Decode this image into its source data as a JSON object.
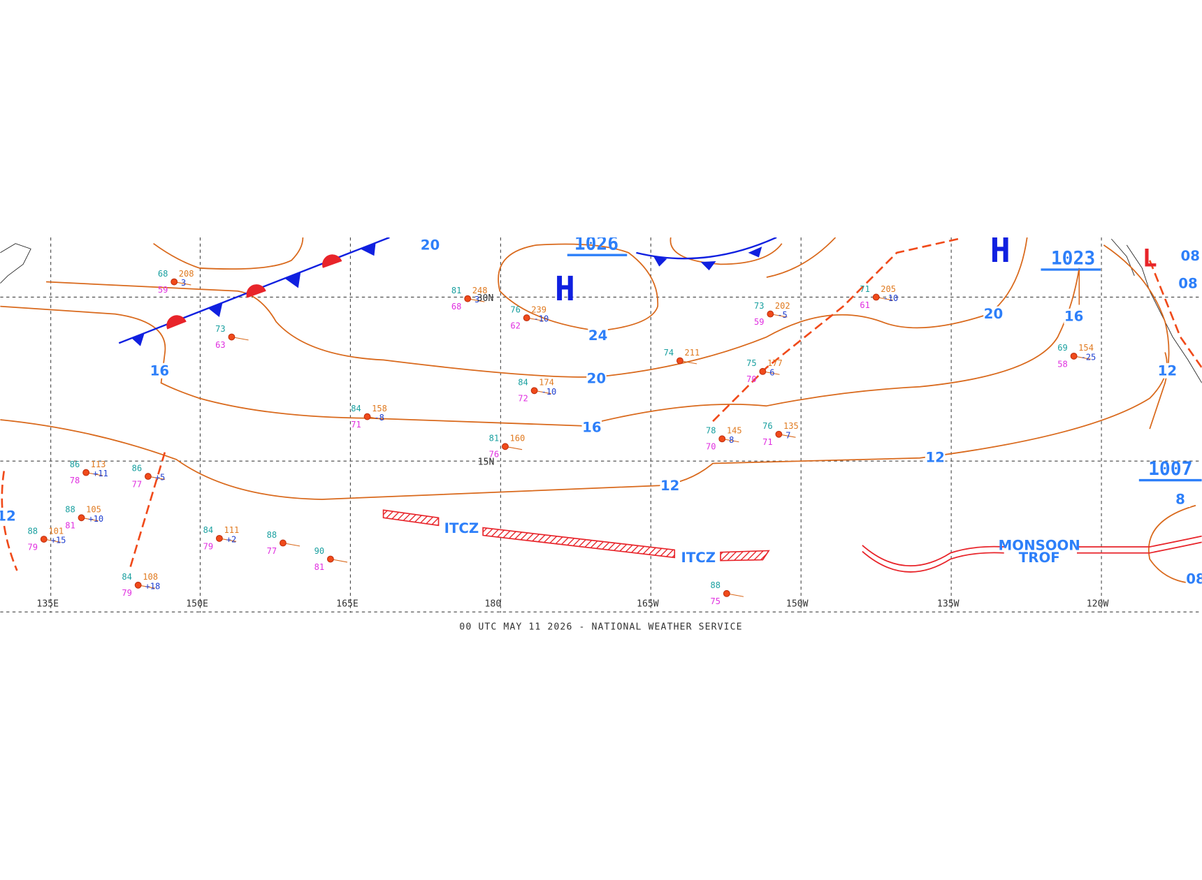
{
  "footer": "00 UTC MAY 11 2026 - NATIONAL WEATHER SERVICE",
  "longitude_labels": [
    "135E",
    "150E",
    "165E",
    "180",
    "165W",
    "150W",
    "135W",
    "120W"
  ],
  "latitude_labels": [
    "30N",
    "15N"
  ],
  "isobar_labels": [
    "20",
    "16",
    "24",
    "20",
    "20",
    "16",
    "16",
    "12",
    "12",
    "12",
    "12",
    "8",
    "08",
    "08",
    "08"
  ],
  "pressure_centers": [
    {
      "letter": "H",
      "value": "1026"
    },
    {
      "letter": "H",
      "value": "1023"
    },
    {
      "letter": "L",
      "value": "1007"
    }
  ],
  "itcz_labels": [
    "ITCZ",
    "ITCZ"
  ],
  "monsoon_trough": [
    "MONSOON",
    "TROF"
  ],
  "stations": [
    {
      "temp": "68",
      "pressure": "208",
      "dewpoint": "59",
      "tendency": "3"
    },
    {
      "temp": "73",
      "dewpoint": "63"
    },
    {
      "temp": "81",
      "pressure": "248",
      "dewpoint": "68",
      "tendency": "3"
    },
    {
      "temp": "76",
      "pressure": "239",
      "dewpoint": "62",
      "tendency": "-10"
    },
    {
      "temp": "84",
      "pressure": "174",
      "dewpoint": "72",
      "tendency": "-10"
    },
    {
      "temp": "84",
      "pressure": "158",
      "dewpoint": "71",
      "tendency": "-8"
    },
    {
      "temp": "81",
      "pressure": "160",
      "dewpoint": "76"
    },
    {
      "temp": "73",
      "pressure": "202",
      "dewpoint": "59",
      "tendency": "-5"
    },
    {
      "temp": "71",
      "pressure": "205",
      "dewpoint": "61",
      "tendency": "-10"
    },
    {
      "temp": "74",
      "pressure": "211"
    },
    {
      "temp": "75",
      "pressure": "177",
      "dewpoint": "70",
      "tendency": "6"
    },
    {
      "temp": "76",
      "pressure": "135",
      "dewpoint": "71",
      "tendency": "7"
    },
    {
      "temp": "78",
      "pressure": "145",
      "dewpoint": "70",
      "tendency": "8"
    },
    {
      "temp": "69",
      "pressure": "154",
      "dewpoint": "58",
      "tendency": "-25"
    },
    {
      "temp": "88",
      "pressure": "105",
      "dewpoint": "81",
      "tendency": "+10"
    },
    {
      "temp": "88",
      "pressure": "101",
      "dewpoint": "79",
      "tendency": "+15"
    },
    {
      "temp": "84",
      "pressure": "111",
      "dewpoint": "79",
      "tendency": "+2"
    },
    {
      "temp": "88",
      "dewpoint": "77"
    },
    {
      "temp": "90",
      "dewpoint": "81"
    },
    {
      "temp": "88",
      "dewpoint": "75"
    },
    {
      "temp": "84",
      "pressure": "108",
      "dewpoint": "79",
      "tendency": "+18"
    },
    {
      "temp": "86",
      "pressure": "113",
      "dewpoint": "78",
      "tendency": "+11"
    },
    {
      "temp": "86",
      "dewpoint": "77",
      "tendency": "+5"
    }
  ]
}
